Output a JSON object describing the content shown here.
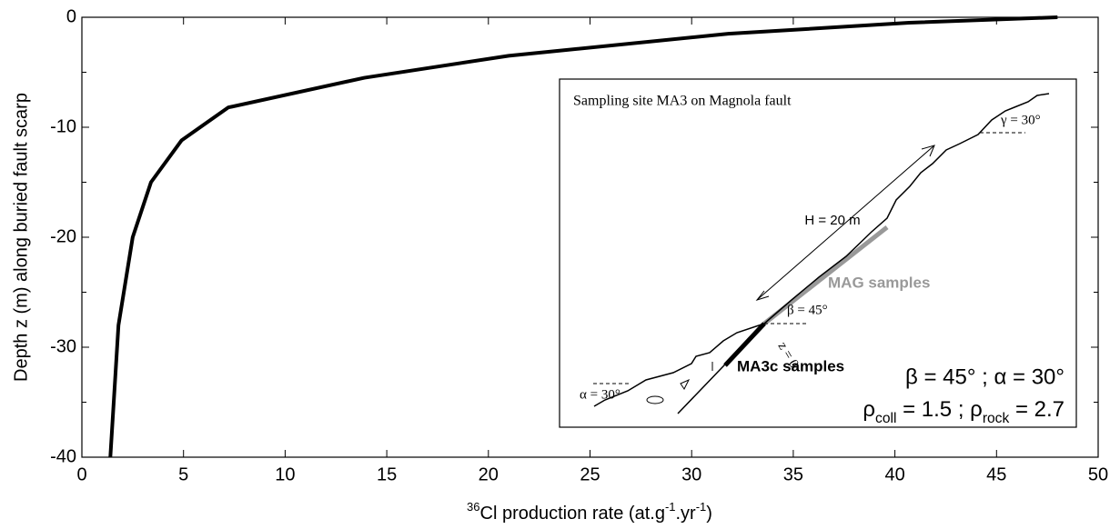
{
  "chart_data": {
    "type": "line",
    "x_label": [
      "36",
      "Cl production rate (at.g",
      "-1",
      ".yr",
      "-1",
      ")"
    ],
    "y_label": "Depth z (m) along buried fault scarp",
    "x": [
      48,
      40.7,
      31.8,
      21,
      13.9,
      7.2,
      4.9,
      3.4,
      2.5,
      1.8,
      1.4
    ],
    "values": [
      0,
      -0.5,
      -1.5,
      -3.5,
      -5.5,
      -8.2,
      -11.2,
      -15,
      -20,
      -28,
      -40
    ],
    "color": "#000000",
    "xlim": [
      0,
      50
    ],
    "xticks": [
      0,
      5,
      10,
      15,
      20,
      25,
      30,
      35,
      40,
      45,
      50
    ],
    "ylim": [
      -40,
      0
    ],
    "yticks": [
      -40,
      -30,
      -20,
      -10,
      0
    ],
    "inset": {
      "title": "Sampling site MA3 on Magnola fault",
      "labels": {
        "h": "H = 20 m",
        "gamma": "γ = 30°",
        "mag": "MAG samples",
        "beta": "β = 45°",
        "z0": "z = 0",
        "ma3c": "MA3c samples",
        "alpha": "α = 30°"
      },
      "params1": "β = 45° ; α = 30°",
      "params2": [
        "ρ",
        "coll",
        " = 1.5 ; ρ",
        "rock",
        " = 2.7"
      ]
    }
  }
}
